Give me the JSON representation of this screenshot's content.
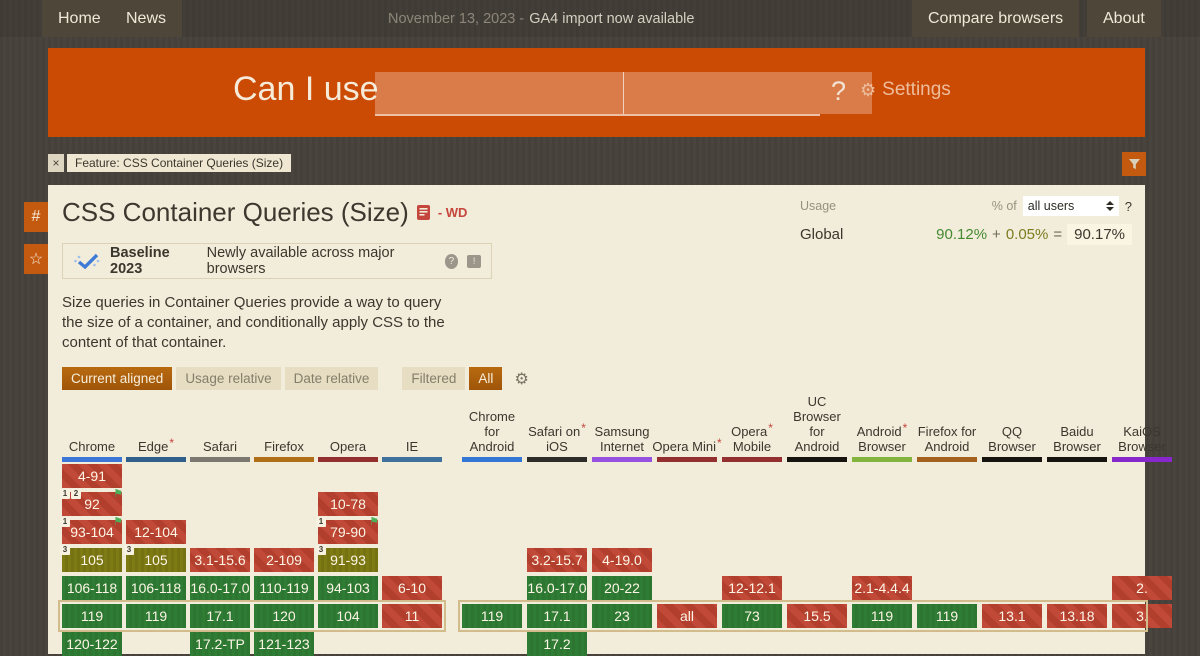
{
  "nav": {
    "left": [
      {
        "label": "Home"
      },
      {
        "label": "News"
      }
    ],
    "news_date": "November 13, 2023 -",
    "news_link": "GA4 import now available",
    "right": [
      {
        "label": "Compare browsers"
      },
      {
        "label": "About"
      }
    ]
  },
  "header": {
    "brand": "Can I use",
    "search_value_1": "",
    "search_value_2": "",
    "question_mark": "?",
    "settings_label": "Settings",
    "gear_icon": "⚙"
  },
  "feature_tag": {
    "close": "×",
    "label": "Feature: CSS Container Queries (Size)"
  },
  "rail": {
    "hash": "#",
    "star": "☆"
  },
  "page": {
    "title": "CSS Container Queries (Size)",
    "spec_status": "- WD"
  },
  "usage": {
    "label": "Usage",
    "percent_of": "% of",
    "select_value": "all users",
    "help": "?",
    "scope": "Global",
    "supported": "90.12%",
    "plus": "+",
    "partial": "0.05%",
    "equals": "=",
    "total": "90.17%"
  },
  "baseline": {
    "title": "Baseline 2023",
    "subtitle": "Newly available across major browsers",
    "help": "?",
    "feedback": "!"
  },
  "description": "Size queries in Container Queries provide a way to query the size of a container, and conditionally apply CSS to the content of that container.",
  "view_buttons": [
    {
      "label": "Current aligned",
      "active": true
    },
    {
      "label": "Usage relative",
      "active": false
    },
    {
      "label": "Date relative",
      "active": false
    }
  ],
  "filter_buttons": [
    {
      "label": "Filtered",
      "active": false
    },
    {
      "label": "All",
      "active": true
    }
  ],
  "colors": {
    "accent_orange": "#cb4a04",
    "supported_green": "#2f7d35",
    "partial_olive": "#7e7b15",
    "unsupported_red": "#c14937",
    "current_row_border": "#d2bc8c",
    "baseline_blue": "#3e7bd7"
  },
  "support": {
    "current_row": 5,
    "desktop": {
      "columns": [
        {
          "name": "Chrome",
          "lines": [
            "Chrome"
          ],
          "asterisk": false,
          "color": "#3c77d8",
          "cells": [
            {
              "r": 0,
              "v": "4-91",
              "s": "n"
            },
            {
              "r": 1,
              "v": "92",
              "s": "n",
              "b": [
                "1",
                "2"
              ],
              "f": true
            },
            {
              "r": 2,
              "v": "93-104",
              "s": "n",
              "b": [
                "1"
              ],
              "f": true
            },
            {
              "r": 3,
              "v": "105",
              "s": "a",
              "b": [
                "3"
              ]
            },
            {
              "r": 4,
              "v": "106-118",
              "s": "y"
            },
            {
              "r": 5,
              "v": "119",
              "s": "y"
            },
            {
              "r": 6,
              "v": "120-122",
              "s": "y"
            }
          ]
        },
        {
          "name": "Edge",
          "lines": [
            "Edge"
          ],
          "asterisk": true,
          "color": "#315f8c",
          "cells": [
            {
              "r": 2,
              "v": "12-104",
              "s": "n"
            },
            {
              "r": 3,
              "v": "105",
              "s": "a",
              "b": [
                "3"
              ]
            },
            {
              "r": 4,
              "v": "106-118",
              "s": "y"
            },
            {
              "r": 5,
              "v": "119",
              "s": "y"
            }
          ]
        },
        {
          "name": "Safari",
          "lines": [
            "Safari"
          ],
          "asterisk": false,
          "color": "#7d786f",
          "cells": [
            {
              "r": 3,
              "v": "3.1-15.6",
              "s": "n"
            },
            {
              "r": 4,
              "v": "16.0-17.0",
              "s": "y"
            },
            {
              "r": 5,
              "v": "17.1",
              "s": "y"
            },
            {
              "r": 6,
              "v": "17.2-TP",
              "s": "y"
            }
          ]
        },
        {
          "name": "Firefox",
          "lines": [
            "Firefox"
          ],
          "asterisk": false,
          "color": "#b06f16",
          "cells": [
            {
              "r": 3,
              "v": "2-109",
              "s": "n"
            },
            {
              "r": 4,
              "v": "110-119",
              "s": "y"
            },
            {
              "r": 5,
              "v": "120",
              "s": "y"
            },
            {
              "r": 6,
              "v": "121-123",
              "s": "y"
            }
          ]
        },
        {
          "name": "Opera",
          "lines": [
            "Opera"
          ],
          "asterisk": false,
          "color": "#942f2f",
          "cells": [
            {
              "r": 1,
              "v": "10-78",
              "s": "n"
            },
            {
              "r": 2,
              "v": "79-90",
              "s": "n",
              "b": [
                "1"
              ],
              "f": true
            },
            {
              "r": 3,
              "v": "91-93",
              "s": "a",
              "b": [
                "3"
              ]
            },
            {
              "r": 4,
              "v": "94-103",
              "s": "y"
            },
            {
              "r": 5,
              "v": "104",
              "s": "y"
            }
          ]
        },
        {
          "name": "IE",
          "lines": [
            "IE"
          ],
          "asterisk": false,
          "color": "#40719c",
          "cells": [
            {
              "r": 4,
              "v": "6-10",
              "s": "n"
            },
            {
              "r": 5,
              "v": "11",
              "s": "n"
            }
          ]
        }
      ]
    },
    "mobile": {
      "columns": [
        {
          "name": "Chrome for Android",
          "lines": [
            "Chrome",
            "for",
            "Android"
          ],
          "asterisk": false,
          "color": "#3476d4",
          "cells": [
            {
              "r": 5,
              "v": "119",
              "s": "y"
            }
          ]
        },
        {
          "name": "Safari on iOS",
          "lines": [
            "Safari on",
            "iOS"
          ],
          "asterisk": true,
          "color": "#2e2c28",
          "cells": [
            {
              "r": 3,
              "v": "3.2-15.7",
              "s": "n"
            },
            {
              "r": 4,
              "v": "16.0-17.0",
              "s": "y"
            },
            {
              "r": 5,
              "v": "17.1",
              "s": "y"
            },
            {
              "r": 6,
              "v": "17.2",
              "s": "y"
            }
          ]
        },
        {
          "name": "Samsung Internet",
          "lines": [
            "Samsung",
            "Internet"
          ],
          "asterisk": false,
          "color": "#9651e0",
          "cells": [
            {
              "r": 3,
              "v": "4-19.0",
              "s": "n"
            },
            {
              "r": 4,
              "v": "20-22",
              "s": "y"
            },
            {
              "r": 5,
              "v": "23",
              "s": "y"
            }
          ]
        },
        {
          "name": "Opera Mini",
          "lines": [
            "Opera Mini"
          ],
          "asterisk": true,
          "color": "#942f2f",
          "cells": [
            {
              "r": 5,
              "v": "all",
              "s": "n"
            }
          ]
        },
        {
          "name": "Opera Mobile",
          "lines": [
            "Opera",
            "Mobile"
          ],
          "asterisk": true,
          "color": "#942f2f",
          "cells": [
            {
              "r": 4,
              "v": "12-12.1",
              "s": "n"
            },
            {
              "r": 5,
              "v": "73",
              "s": "y"
            }
          ]
        },
        {
          "name": "UC Browser for Android",
          "lines": [
            "UC",
            "Browser",
            "for",
            "Android"
          ],
          "asterisk": false,
          "color": "#17140f",
          "cells": [
            {
              "r": 5,
              "v": "15.5",
              "s": "n"
            }
          ]
        },
        {
          "name": "Android Browser",
          "lines": [
            "Android",
            "Browser"
          ],
          "asterisk": true,
          "color": "#83b43e",
          "cells": [
            {
              "r": 4,
              "v": "2.1-4.4.4",
              "s": "n"
            },
            {
              "r": 5,
              "v": "119",
              "s": "y"
            }
          ]
        },
        {
          "name": "Firefox for Android",
          "lines": [
            "Firefox for",
            "Android"
          ],
          "asterisk": false,
          "color": "#a4601d",
          "cells": [
            {
              "r": 5,
              "v": "119",
              "s": "y"
            }
          ]
        },
        {
          "name": "QQ Browser",
          "lines": [
            "QQ",
            "Browser"
          ],
          "asterisk": false,
          "color": "#17140f",
          "cells": [
            {
              "r": 5,
              "v": "13.1",
              "s": "n"
            }
          ]
        },
        {
          "name": "Baidu Browser",
          "lines": [
            "Baidu",
            "Browser"
          ],
          "asterisk": false,
          "color": "#17140f",
          "cells": [
            {
              "r": 5,
              "v": "13.18",
              "s": "n"
            }
          ]
        },
        {
          "name": "KaiOS Browser",
          "lines": [
            "KaiOS",
            "Browser"
          ],
          "asterisk": false,
          "color": "#8827cc",
          "cells": [
            {
              "r": 4,
              "v": "2.",
              "s": "n"
            },
            {
              "r": 5,
              "v": "3.",
              "s": "n"
            }
          ]
        }
      ]
    }
  }
}
